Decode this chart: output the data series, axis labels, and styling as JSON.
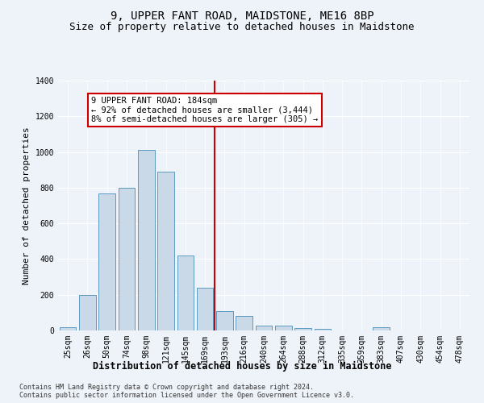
{
  "title": "9, UPPER FANT ROAD, MAIDSTONE, ME16 8BP",
  "subtitle": "Size of property relative to detached houses in Maidstone",
  "xlabel": "Distribution of detached houses by size in Maidstone",
  "ylabel": "Number of detached properties",
  "categories": [
    "25sqm",
    "26sqm",
    "50sqm",
    "74sqm",
    "98sqm",
    "121sqm",
    "145sqm",
    "169sqm",
    "193sqm",
    "216sqm",
    "240sqm",
    "264sqm",
    "288sqm",
    "312sqm",
    "335sqm",
    "359sqm",
    "383sqm",
    "407sqm",
    "430sqm",
    "454sqm",
    "478sqm"
  ],
  "values": [
    20,
    200,
    770,
    800,
    1010,
    890,
    420,
    240,
    110,
    80,
    25,
    25,
    15,
    10,
    0,
    0,
    20,
    0,
    0,
    0,
    0
  ],
  "bar_color": "#c9d9e8",
  "bar_edge_color": "#5a9abf",
  "vline_color": "#cc0000",
  "vline_pos": 7.5,
  "annotation_text": "9 UPPER FANT ROAD: 184sqm\n← 92% of detached houses are smaller (3,444)\n8% of semi-detached houses are larger (305) →",
  "annotation_box_color": "#ffffff",
  "annotation_box_edge": "#cc0000",
  "ylim": [
    0,
    1400
  ],
  "yticks": [
    0,
    200,
    400,
    600,
    800,
    1000,
    1200,
    1400
  ],
  "background_color": "#eef2f9",
  "footer": "Contains HM Land Registry data © Crown copyright and database right 2024.\nContains public sector information licensed under the Open Government Licence v3.0.",
  "title_fontsize": 10,
  "subtitle_fontsize": 9,
  "xlabel_fontsize": 8.5,
  "ylabel_fontsize": 8,
  "tick_fontsize": 7,
  "footer_fontsize": 6,
  "annot_fontsize": 7.5
}
